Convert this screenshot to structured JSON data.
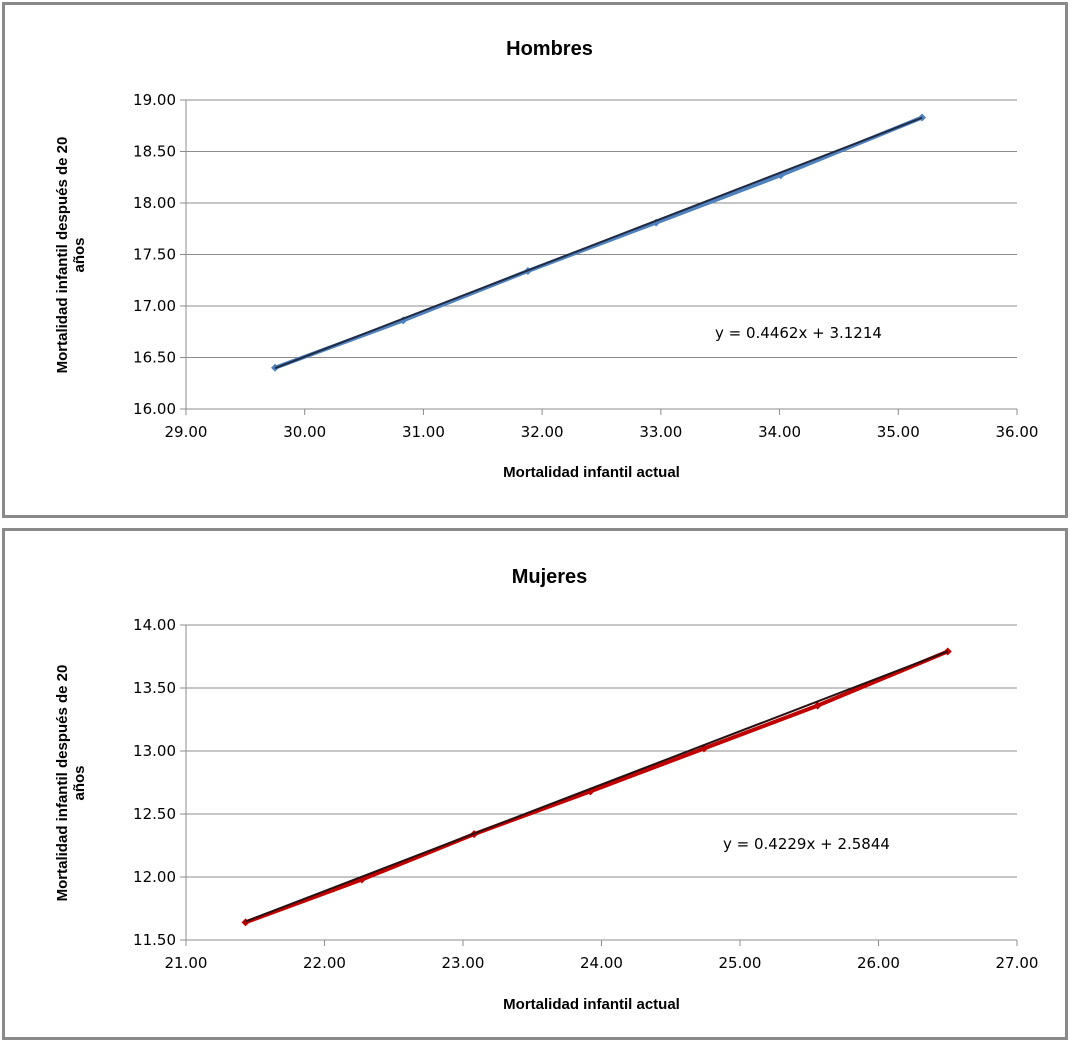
{
  "chart_data": [
    {
      "type": "scatter",
      "title": "Hombres",
      "xlabel": "Mortalidad infantil  actual",
      "ylabel": [
        "Mortalidad infantil  después de 20",
        "años"
      ],
      "xlim": [
        29,
        36
      ],
      "ylim": [
        16,
        19
      ],
      "xticks": [
        "29.00",
        "30.00",
        "31.00",
        "32.00",
        "33.00",
        "34.00",
        "35.00",
        "36.00"
      ],
      "yticks": [
        "16.00",
        "16.50",
        "17.00",
        "17.50",
        "18.00",
        "18.50",
        "19.00"
      ],
      "grid": true,
      "series": [
        {
          "color": "#4f81bd",
          "marker_color": "#4f81bd",
          "x": [
            29.75,
            30.83,
            31.88,
            32.96,
            34.01,
            35.2
          ],
          "y": [
            16.4,
            16.86,
            17.34,
            17.81,
            18.27,
            18.83
          ]
        }
      ],
      "trendline": {
        "slope": 0.4462,
        "intercept": 3.1214,
        "color": "#1f2a44",
        "x_range": [
          29.75,
          35.2
        ]
      },
      "equation": "y = 0.4462x + 3.1214"
    },
    {
      "type": "scatter",
      "title": "Mujeres",
      "xlabel": "Mortalidad infantil  actual",
      "ylabel": [
        "Mortalidad infantil  después de 20",
        "años"
      ],
      "xlim": [
        21,
        27
      ],
      "ylim": [
        11.5,
        14
      ],
      "xticks": [
        "21.00",
        "22.00",
        "23.00",
        "24.00",
        "25.00",
        "26.00",
        "27.00"
      ],
      "yticks": [
        "11.50",
        "12.00",
        "12.50",
        "13.00",
        "13.50",
        "14.00"
      ],
      "grid": true,
      "series": [
        {
          "color": "#c00000",
          "marker_color": "#c00000",
          "x": [
            21.43,
            22.27,
            23.08,
            23.92,
            24.74,
            25.56,
            26.5
          ],
          "y": [
            11.64,
            11.98,
            12.34,
            12.68,
            13.02,
            13.36,
            13.79
          ]
        }
      ],
      "trendline": {
        "slope": 0.4229,
        "intercept": 2.5844,
        "color": "#2a1010",
        "x_range": [
          21.43,
          26.5
        ]
      },
      "equation": "y = 0.4229x + 2.5844"
    }
  ]
}
